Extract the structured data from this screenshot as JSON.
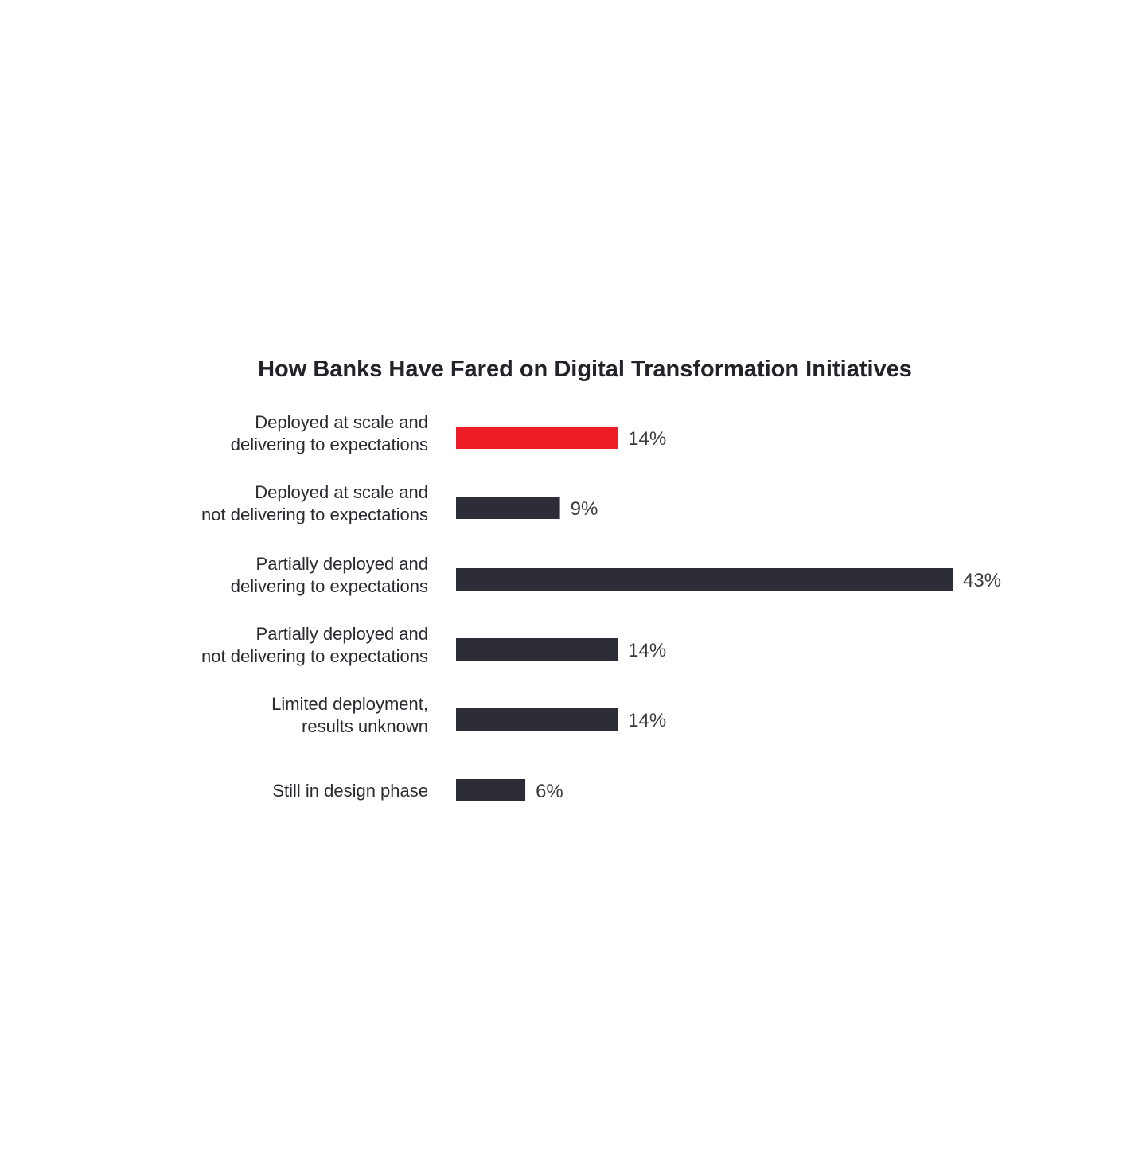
{
  "chart_data": {
    "type": "bar",
    "orientation": "horizontal",
    "title": "How Banks Have Fared on Digital Transformation Initiatives",
    "categories": [
      [
        "Deployed at scale and",
        "delivering to expectations"
      ],
      [
        "Deployed at scale and",
        "not delivering to expectations"
      ],
      [
        "Partially deployed and",
        "delivering to expectations"
      ],
      [
        "Partially deployed and",
        "not delivering to expectations"
      ],
      [
        "Limited deployment,",
        "results unknown"
      ],
      [
        "Still in design phase"
      ]
    ],
    "values": [
      14,
      9,
      43,
      14,
      14,
      6
    ],
    "value_labels": [
      "14%",
      "9%",
      "43%",
      "14%",
      "14%",
      "6%"
    ],
    "unit": "%",
    "xlim": [
      0,
      43
    ],
    "grid": false,
    "legend": "none",
    "colors": {
      "highlight": "#ee1c25",
      "default": "#2c2d36"
    },
    "highlight_index": 0
  }
}
